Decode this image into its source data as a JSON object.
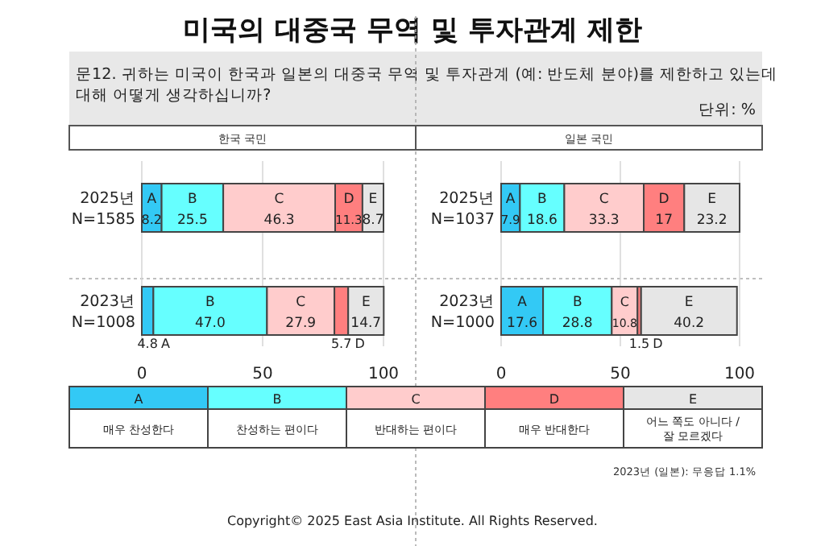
{
  "chart_data": [
    {
      "type": "other",
      "title": "미국의 대중국 무역 및 투자관계 제한",
      "subtitle": "문12. 귀하는 미국이 한국과 일본의 대중국 무역 및 투자관계 (예: 반도체 분야)를 제한하고 있는데\n대해 어떻게 생각하십니까?",
      "annotations": [
        "단위: %",
        "매우 찬성한다",
        "찬성하는 편이다",
        "반대하는 편이다",
        "매우 반대한다",
        "어느 쪽도 아니다 /\n잘 모르겠다",
        "2023년 (일본): 무응답 1.1%",
        "Copyright© 2025 East Asia Institute. All Rights Reserved."
      ]
    },
    {
      "type": "bar",
      "title": "한국 국민",
      "orientation": "horizontal",
      "stacked": true,
      "categories": [
        "2025년\nN=1585",
        "2023년\nN=1008"
      ],
      "xlim": [
        0,
        100
      ],
      "xticks": [
        0,
        50,
        100
      ],
      "grid": "x",
      "legend": "bottom",
      "series": [
        {
          "name": "A",
          "color": "#33c9f5",
          "values": [
            8.2,
            4.8
          ],
          "value_labels": [
            "8.2",
            "4.8"
          ]
        },
        {
          "name": "B",
          "color": "#66ffff",
          "values": [
            25.5,
            47.0
          ],
          "value_labels": [
            "25.5",
            "47.0"
          ]
        },
        {
          "name": "C",
          "color": "#ffcccc",
          "values": [
            46.3,
            27.9
          ],
          "value_labels": [
            "46.3",
            "27.9"
          ]
        },
        {
          "name": "D",
          "color": "#ff7f7f",
          "values": [
            11.3,
            5.7
          ],
          "value_labels": [
            "11.3",
            "5.7"
          ]
        },
        {
          "name": "E",
          "color": "#e6e6e6",
          "values": [
            8.7,
            14.7
          ],
          "value_labels": [
            "8.7",
            "14.7"
          ]
        }
      ]
    },
    {
      "type": "bar",
      "title": "일본 국민",
      "orientation": "horizontal",
      "stacked": true,
      "categories": [
        "2025년\nN=1037",
        "2023년\nN=1000"
      ],
      "xlim": [
        0,
        100
      ],
      "xticks": [
        0,
        50,
        100
      ],
      "grid": "x",
      "series": [
        {
          "name": "A",
          "color": "#33c9f5",
          "values": [
            7.9,
            17.6
          ],
          "value_labels": [
            "7.9",
            "17.6"
          ]
        },
        {
          "name": "B",
          "color": "#66ffff",
          "values": [
            18.6,
            28.8
          ],
          "value_labels": [
            "18.6",
            "28.8"
          ]
        },
        {
          "name": "C",
          "color": "#ffcccc",
          "values": [
            33.3,
            10.8
          ],
          "value_labels": [
            "33.3",
            "10.8"
          ]
        },
        {
          "name": "D",
          "color": "#ff7f7f",
          "values": [
            17,
            1.5
          ],
          "value_labels": [
            "17",
            "1.5"
          ]
        },
        {
          "name": "E",
          "color": "#e6e6e6",
          "values": [
            23.2,
            40.2
          ],
          "value_labels": [
            "23.2",
            "40.2"
          ]
        }
      ]
    }
  ]
}
